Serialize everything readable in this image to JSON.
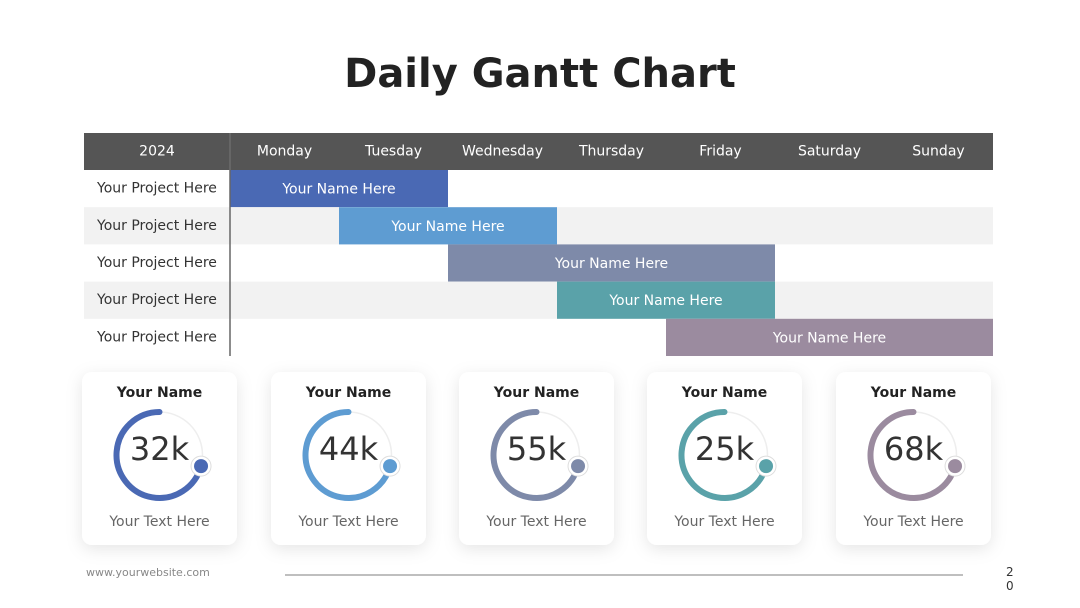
{
  "title": "Daily Gantt Chart",
  "gantt": {
    "year": "2024",
    "days": [
      "Monday",
      "Tuesday",
      "Wednesday",
      "Thursday",
      "Friday",
      "Saturday",
      "Sunday"
    ],
    "rows": [
      {
        "project": "Your Project Here",
        "task": "Your Name Here",
        "start": 0,
        "end": 2,
        "color": "#4a69b4"
      },
      {
        "project": "Your Project Here",
        "task": "Your Name Here",
        "start": 1,
        "end": 3,
        "color": "#5e9cd2"
      },
      {
        "project": "Your Project Here",
        "task": "Your Name Here",
        "start": 2,
        "end": 5,
        "color": "#7e8aa9"
      },
      {
        "project": "Your Project Here",
        "task": "Your Name Here",
        "start": 3,
        "end": 5,
        "color": "#5aa2a9"
      },
      {
        "project": "Your Project Here",
        "task": "Your Name Here",
        "start": 4,
        "end": 7,
        "color": "#9b8b9f"
      }
    ]
  },
  "cards": [
    {
      "name": "Your Name",
      "value": "32k",
      "text": "Your Text Here",
      "color": "#4a69b4"
    },
    {
      "name": "Your Name",
      "value": "44k",
      "text": "Your Text Here",
      "color": "#5e9cd2"
    },
    {
      "name": "Your Name",
      "value": "55k",
      "text": "Your Text Here",
      "color": "#7e8aa9"
    },
    {
      "name": "Your Name",
      "value": "25k",
      "text": "Your Text Here",
      "color": "#5aa2a9"
    },
    {
      "name": "Your Name",
      "value": "68k",
      "text": "Your Text Here",
      "color": "#9b8b9f"
    }
  ],
  "footer": {
    "website": "www.yourwebsite.com",
    "page_number": "20"
  }
}
